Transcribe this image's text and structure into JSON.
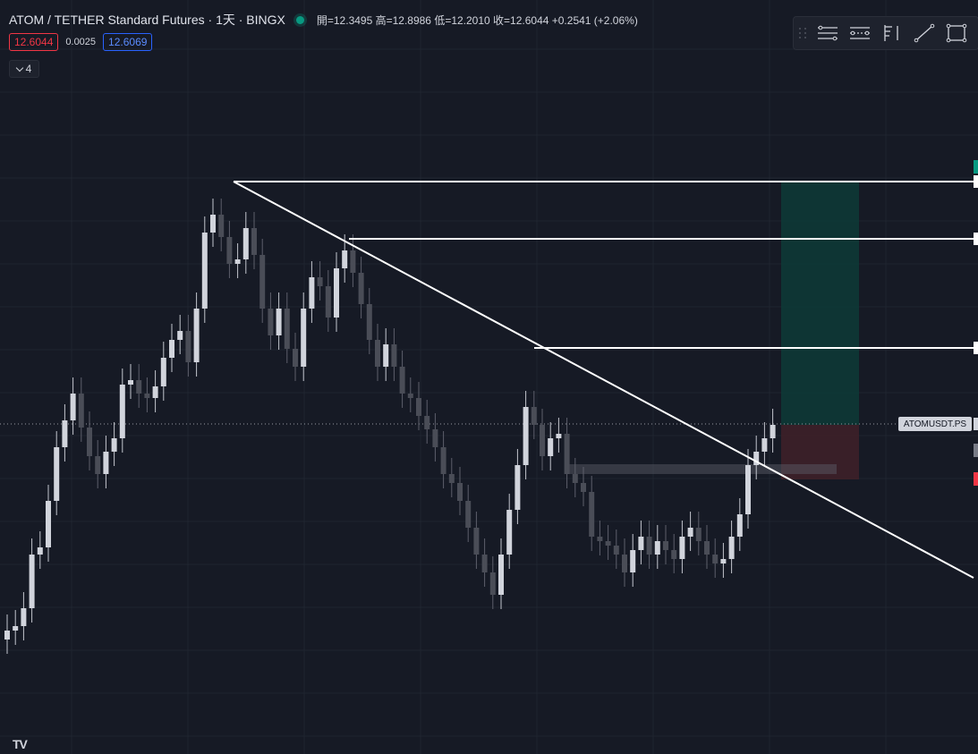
{
  "legend": {
    "symbol": "ATOM / TETHER Standard Futures · 1天 · BINGX",
    "ohlc": "開=12.3495  高=12.8986  低=12.2010  收=12.6044  +0.2541 (+2.06%)"
  },
  "prices": {
    "bid": "12.6044",
    "spread": "0.0025",
    "ask": "12.6069"
  },
  "collapse": {
    "count": "4"
  },
  "toolbar": {
    "tools": [
      {
        "name": "parallel-channel-icon"
      },
      {
        "name": "regression-trend-icon"
      },
      {
        "name": "fib-retracement-icon"
      },
      {
        "name": "trend-line-icon"
      },
      {
        "name": "rectangle-icon"
      }
    ]
  },
  "symbol_tag": "ATOMUSDT.PS",
  "logo": "TV",
  "colors": {
    "background": "#161a25",
    "grid": "#1f2430",
    "upCandle": "#d1d4dc",
    "downCandle": "#4a4d57",
    "takeProfit": "#0c3a36",
    "stopLoss": "#3a1f28",
    "lines": "#ffffff"
  }
}
